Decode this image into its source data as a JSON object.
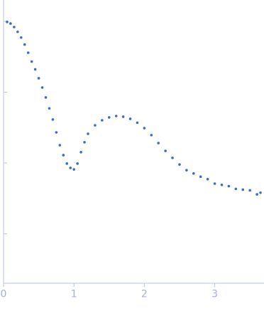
{
  "chart_data": {
    "type": "scatter",
    "color": "#3b6cc0",
    "log_y": true,
    "x": [
      0.05,
      0.1,
      0.15,
      0.2,
      0.25,
      0.3,
      0.35,
      0.4,
      0.45,
      0.5,
      0.55,
      0.6,
      0.65,
      0.7,
      0.75,
      0.8,
      0.85,
      0.9,
      0.95,
      1.0,
      1.05,
      1.1,
      1.15,
      1.2,
      1.3,
      1.4,
      1.5,
      1.6,
      1.7,
      1.8,
      1.9,
      2.0,
      2.1,
      2.2,
      2.3,
      2.4,
      2.5,
      2.6,
      2.7,
      2.8,
      2.9,
      3.0,
      3.1,
      3.2,
      3.3,
      3.4,
      3.5,
      3.6,
      3.65
    ],
    "values": [
      0.98,
      0.93,
      0.83,
      0.71,
      0.59,
      0.47,
      0.36,
      0.27,
      0.21,
      0.157,
      0.116,
      0.084,
      0.059,
      0.041,
      0.027,
      0.0178,
      0.0129,
      0.0098,
      0.0085,
      0.0081,
      0.0098,
      0.0142,
      0.0196,
      0.0258,
      0.034,
      0.04,
      0.044,
      0.046,
      0.045,
      0.042,
      0.037,
      0.031,
      0.0247,
      0.0191,
      0.0148,
      0.0118,
      0.0095,
      0.0079,
      0.0071,
      0.0064,
      0.0059,
      0.0051,
      0.0049,
      0.0047,
      0.0043,
      0.0042,
      0.0041,
      0.0036,
      0.0038
    ],
    "xlim": [
      0,
      3.7
    ],
    "xticks": [
      0,
      1,
      2,
      3
    ],
    "ylim": [
      0.0002,
      2
    ],
    "yticks": [
      0.001,
      0.01,
      0.1,
      1
    ],
    "ytick_labels": false
  }
}
